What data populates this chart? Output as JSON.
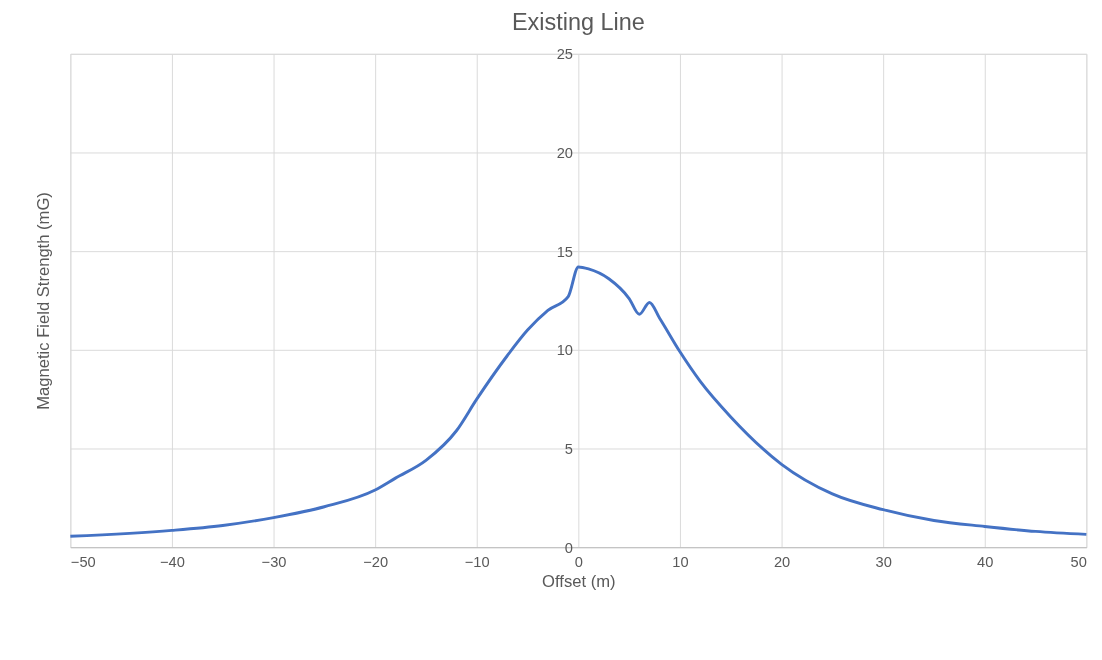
{
  "chart_data": {
    "type": "line",
    "title": "Existing Line",
    "xlabel": "Offset (m)",
    "ylabel": "Magnetic Field Strength (mG)",
    "x": [
      -50,
      -40,
      -35,
      -30,
      -25,
      -20,
      -18,
      -15,
      -12,
      -10,
      -7,
      -5,
      -3,
      -1,
      0,
      1,
      3,
      5,
      6,
      7,
      8,
      10,
      12,
      15,
      20,
      25,
      30,
      35,
      40,
      45,
      50
    ],
    "series": [
      {
        "color": "#4472c4",
        "values": [
          0.55,
          0.85,
          1.1,
          1.5,
          2.05,
          2.9,
          3.5,
          4.4,
          5.9,
          7.5,
          9.7,
          11.0,
          12.0,
          12.7,
          14.2,
          14.1,
          13.6,
          12.6,
          11.8,
          12.4,
          11.6,
          9.9,
          8.4,
          6.6,
          4.2,
          2.7,
          1.9,
          1.35,
          1.05,
          0.8,
          0.65
        ]
      }
    ],
    "xlim": [
      -50,
      50
    ],
    "xticks": [
      -50,
      -40,
      -30,
      -20,
      -10,
      0,
      10,
      20,
      30,
      40,
      50
    ],
    "ylim": [
      0,
      25
    ],
    "yticks": [
      0,
      5,
      10,
      15,
      20,
      25
    ],
    "grid": true,
    "marker": "none",
    "line_style": "solid"
  }
}
